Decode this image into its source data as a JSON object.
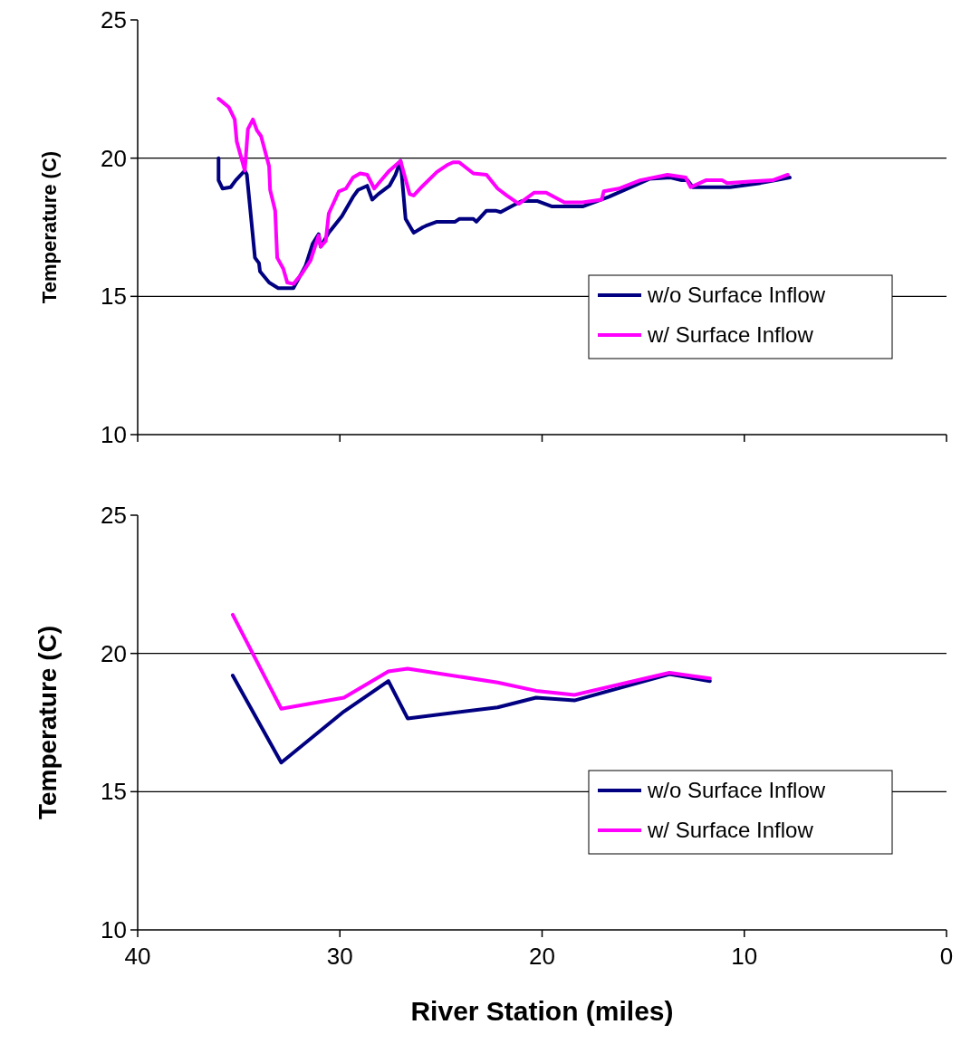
{
  "chart_data": [
    {
      "type": "line",
      "ylabel": "Temperature (C)",
      "xlim": [
        40,
        0
      ],
      "xticks": [
        40,
        30,
        20,
        10,
        0
      ],
      "ylim": [
        10,
        25
      ],
      "yticks": [
        10,
        15,
        20,
        25
      ],
      "tick_labels": "y",
      "grid": "y",
      "legend": "right",
      "marker": "none",
      "line_style": "solid",
      "series": [
        {
          "name": "w/o Surface Inflow",
          "color": "#000080",
          "x": [
            36.0,
            36.0,
            35.8,
            35.4,
            35.15,
            34.7,
            34.6,
            34.2,
            34.0,
            33.95,
            33.5,
            33.05,
            32.3,
            31.7,
            31.35,
            31.05,
            30.95,
            30.55,
            29.9,
            29.35,
            29.1,
            28.65,
            28.4,
            28.1,
            27.55,
            27.25,
            27.0,
            26.75,
            26.35,
            25.9,
            25.75,
            25.2,
            24.3,
            24.1,
            23.4,
            23.25,
            22.75,
            22.3,
            22.05,
            21.4,
            21.0,
            20.25,
            19.5,
            18.0,
            16.7,
            15.15,
            14.7,
            13.65,
            13.1,
            12.8,
            12.55,
            10.7,
            9.2,
            8.45,
            7.75
          ],
          "values": [
            20.0,
            19.2,
            18.9,
            18.95,
            19.2,
            19.55,
            19.4,
            16.4,
            16.2,
            15.9,
            15.5,
            15.3,
            15.3,
            16.1,
            16.9,
            17.25,
            16.8,
            17.3,
            17.9,
            18.6,
            18.85,
            19.0,
            18.5,
            18.7,
            19.0,
            19.4,
            19.9,
            17.8,
            17.3,
            17.5,
            17.55,
            17.7,
            17.7,
            17.8,
            17.8,
            17.7,
            18.1,
            18.1,
            18.05,
            18.3,
            18.45,
            18.45,
            18.25,
            18.25,
            18.6,
            19.1,
            19.25,
            19.3,
            19.2,
            19.2,
            18.95,
            18.95,
            19.1,
            19.2,
            19.3
          ]
        },
        {
          "name": "w/ Surface Inflow",
          "color": "#ff00ff",
          "x": [
            36.0,
            35.75,
            35.5,
            35.2,
            35.1,
            34.7,
            34.55,
            34.3,
            34.1,
            33.9,
            33.5,
            33.45,
            33.2,
            33.1,
            32.8,
            32.6,
            32.3,
            31.9,
            31.45,
            31.05,
            30.95,
            30.7,
            30.55,
            30.05,
            29.7,
            29.35,
            29.0,
            28.65,
            28.3,
            27.9,
            27.55,
            27.0,
            26.55,
            26.35,
            25.9,
            25.2,
            24.7,
            24.4,
            24.1,
            23.4,
            22.75,
            22.2,
            21.75,
            21.15,
            20.4,
            19.8,
            18.9,
            18.0,
            17.05,
            16.95,
            16.2,
            15.15,
            13.8,
            12.9,
            12.65,
            11.9,
            11.1,
            10.85,
            9.75,
            8.6,
            7.85
          ],
          "values": [
            22.15,
            22.0,
            21.85,
            21.4,
            20.6,
            19.55,
            21.05,
            21.4,
            21.0,
            20.8,
            19.7,
            18.85,
            18.1,
            16.4,
            16.0,
            15.5,
            15.45,
            15.8,
            16.3,
            17.2,
            16.8,
            17.0,
            18.0,
            18.8,
            18.9,
            19.3,
            19.45,
            19.4,
            18.9,
            19.25,
            19.55,
            19.9,
            18.7,
            18.65,
            19.0,
            19.5,
            19.75,
            19.85,
            19.85,
            19.45,
            19.4,
            18.9,
            18.65,
            18.35,
            18.75,
            18.75,
            18.4,
            18.4,
            18.5,
            18.8,
            18.9,
            19.2,
            19.4,
            19.3,
            18.95,
            19.2,
            19.2,
            19.1,
            19.15,
            19.2,
            19.4
          ]
        }
      ]
    },
    {
      "type": "line",
      "xlabel": "River Station (miles)",
      "ylabel": "Temperature (C)",
      "xlim": [
        40,
        0
      ],
      "xticks": [
        40,
        30,
        20,
        10,
        0
      ],
      "ylim": [
        10,
        25
      ],
      "yticks": [
        10,
        15,
        20,
        25
      ],
      "grid": "y",
      "legend": "right",
      "marker": "none",
      "line_style": "solid",
      "series": [
        {
          "name": "w/o Surface Inflow",
          "color": "#000080",
          "x": [
            35.3,
            32.9,
            29.8,
            27.6,
            26.65,
            22.2,
            20.3,
            18.4,
            13.7,
            11.7
          ],
          "values": [
            19.2,
            16.05,
            17.9,
            19.0,
            17.65,
            18.05,
            18.4,
            18.3,
            19.25,
            19.0
          ]
        },
        {
          "name": "w/ Surface Inflow",
          "color": "#ff00ff",
          "x": [
            35.3,
            32.9,
            29.8,
            27.6,
            26.65,
            22.2,
            20.3,
            18.4,
            13.7,
            11.7
          ],
          "values": [
            21.4,
            18.0,
            18.4,
            19.35,
            19.45,
            18.95,
            18.65,
            18.5,
            19.3,
            19.1
          ]
        }
      ]
    }
  ]
}
